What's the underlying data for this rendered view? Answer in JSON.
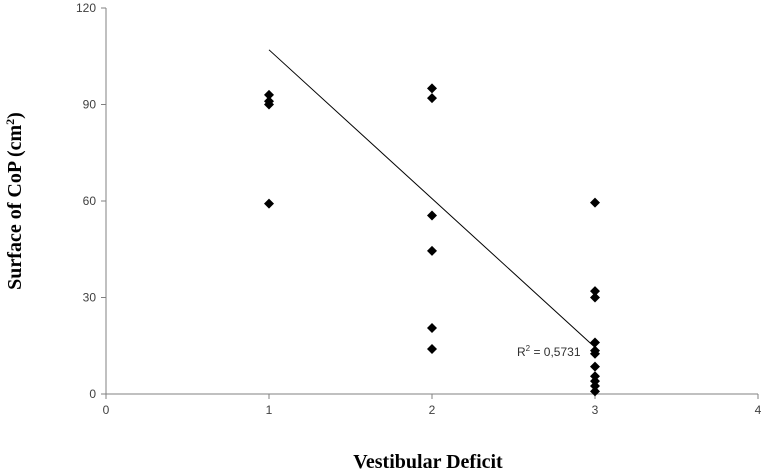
{
  "chart_data": {
    "type": "scatter",
    "title": "",
    "xlabel": "Vestibular Deficit",
    "ylabel_main": "Surface of CoP (cm",
    "ylabel_sup": "2",
    "ylabel_end": ")",
    "xlim": [
      0,
      4
    ],
    "ylim": [
      0,
      120
    ],
    "x_ticks": [
      "0",
      "1",
      "2",
      "3",
      "4"
    ],
    "y_ticks": [
      "0",
      "30",
      "60",
      "90",
      "120"
    ],
    "grid": false,
    "legend": "none",
    "marker": "diamond",
    "marker_color": "#000000",
    "points": [
      {
        "x": 1,
        "y": 93
      },
      {
        "x": 1,
        "y": 91
      },
      {
        "x": 1,
        "y": 90
      },
      {
        "x": 1,
        "y": 59.2
      },
      {
        "x": 2,
        "y": 95
      },
      {
        "x": 2,
        "y": 92
      },
      {
        "x": 2,
        "y": 55.5
      },
      {
        "x": 2,
        "y": 44.5
      },
      {
        "x": 2,
        "y": 20.5
      },
      {
        "x": 2,
        "y": 14
      },
      {
        "x": 3,
        "y": 59.5
      },
      {
        "x": 3,
        "y": 32
      },
      {
        "x": 3,
        "y": 30
      },
      {
        "x": 3,
        "y": 16
      },
      {
        "x": 3,
        "y": 13.5
      },
      {
        "x": 3,
        "y": 12.5
      },
      {
        "x": 3,
        "y": 8.5
      },
      {
        "x": 3,
        "y": 5.5
      },
      {
        "x": 3,
        "y": 4
      },
      {
        "x": 3,
        "y": 2.5
      },
      {
        "x": 3,
        "y": 0.8
      }
    ],
    "trendline": {
      "x": [
        1,
        3
      ],
      "y": [
        107,
        14.5
      ],
      "color": "#000000"
    },
    "r2_prefix": "R",
    "r2_sup": "2",
    "r2_value": " = 0,5731"
  }
}
